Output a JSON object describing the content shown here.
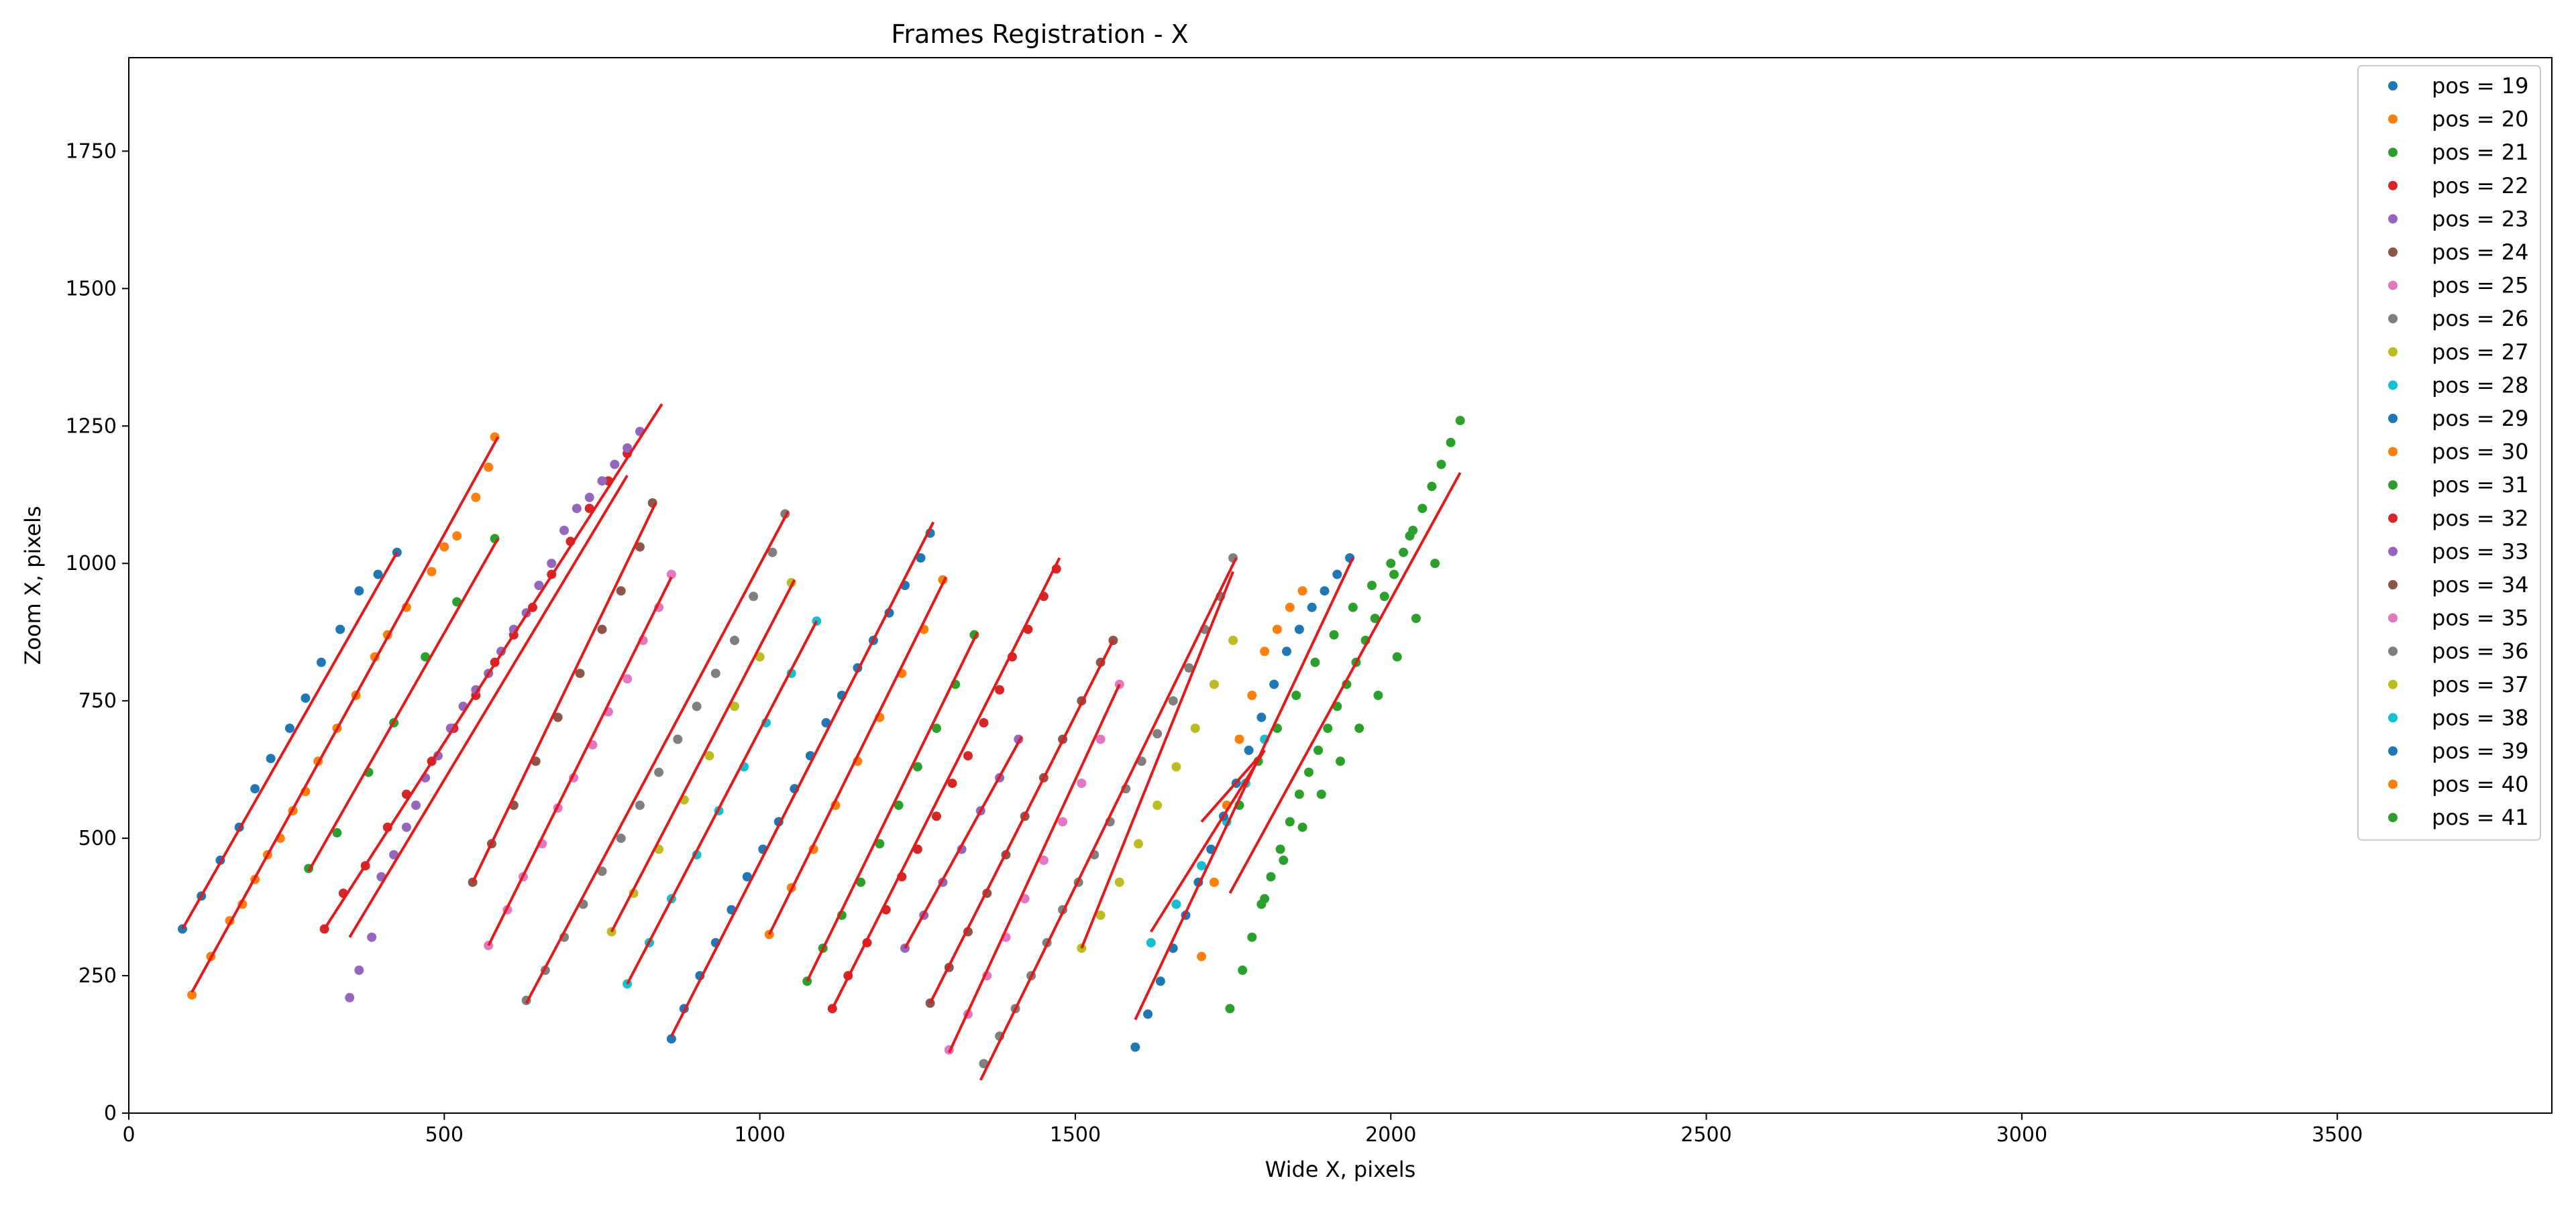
{
  "chart_data": {
    "type": "scatter",
    "title": "Frames Registration - X",
    "xlabel": "Wide X, pixels",
    "ylabel": "Zoom X, pixels",
    "xlim": [
      0,
      3840
    ],
    "ylim": [
      0,
      1920
    ],
    "xticks": [
      0,
      500,
      1000,
      1500,
      2000,
      2500,
      3000,
      3500
    ],
    "yticks": [
      0,
      250,
      500,
      750,
      1000,
      1250,
      1500,
      1750
    ],
    "grid": false,
    "legend_position": "top-right",
    "fit_line_color": "#e31a1c",
    "series": [
      {
        "name": "pos = 19",
        "color": "#1f77b4",
        "x": [
          85,
          115,
          145,
          175,
          200,
          225,
          255,
          280,
          305,
          335,
          365,
          395,
          425
        ],
        "y": [
          335,
          395,
          460,
          520,
          590,
          645,
          700,
          755,
          820,
          880,
          950,
          980,
          1020
        ]
      },
      {
        "name": "pos = 20",
        "color": "#ff7f0e",
        "x": [
          100,
          130,
          160,
          180,
          200,
          220,
          240,
          260,
          280,
          300,
          330,
          360,
          390,
          410,
          440,
          480,
          500,
          520,
          550,
          570,
          580
        ],
        "y": [
          215,
          285,
          350,
          380,
          425,
          470,
          500,
          550,
          585,
          640,
          700,
          760,
          830,
          870,
          920,
          985,
          1030,
          1050,
          1120,
          1175,
          1230
        ]
      },
      {
        "name": "pos = 21",
        "color": "#2ca02c",
        "x": [
          285,
          330,
          380,
          420,
          470,
          520,
          580
        ],
        "y": [
          445,
          510,
          620,
          710,
          830,
          930,
          1045
        ]
      },
      {
        "name": "pos = 22",
        "color": "#d62728",
        "x": [
          310,
          340,
          375,
          410,
          440,
          480,
          515,
          550,
          580,
          610,
          640,
          670,
          700,
          730,
          760,
          790
        ],
        "y": [
          335,
          400,
          450,
          520,
          580,
          640,
          700,
          760,
          820,
          870,
          920,
          980,
          1040,
          1100,
          1150,
          1200
        ]
      },
      {
        "name": "pos = 23",
        "color": "#9467bd",
        "x": [
          350,
          365,
          385,
          400,
          420,
          440,
          455,
          470,
          490,
          510,
          530,
          550,
          570,
          590,
          610,
          630,
          650,
          670,
          690,
          710,
          730,
          750,
          770,
          790,
          810
        ],
        "y": [
          210,
          260,
          320,
          430,
          470,
          520,
          560,
          610,
          650,
          700,
          740,
          770,
          800,
          840,
          880,
          910,
          960,
          1000,
          1060,
          1100,
          1120,
          1150,
          1180,
          1210,
          1240
        ]
      },
      {
        "name": "pos = 24",
        "color": "#8c564b",
        "x": [
          545,
          575,
          610,
          645,
          680,
          715,
          750,
          780,
          810,
          830
        ],
        "y": [
          420,
          490,
          560,
          640,
          720,
          800,
          880,
          950,
          1030,
          1110
        ]
      },
      {
        "name": "pos = 25",
        "color": "#e377c2",
        "x": [
          570,
          600,
          625,
          655,
          680,
          705,
          735,
          760,
          790,
          815,
          840,
          860
        ],
        "y": [
          305,
          370,
          430,
          490,
          555,
          610,
          670,
          730,
          790,
          860,
          920,
          980
        ]
      },
      {
        "name": "pos = 26",
        "color": "#7f7f7f",
        "x": [
          630,
          660,
          690,
          720,
          750,
          780,
          810,
          840,
          870,
          900,
          930,
          960,
          990,
          1020,
          1040
        ],
        "y": [
          205,
          260,
          320,
          380,
          440,
          500,
          560,
          620,
          680,
          740,
          800,
          860,
          940,
          1020,
          1090
        ]
      },
      {
        "name": "pos = 27",
        "color": "#bcbd22",
        "x": [
          765,
          800,
          840,
          880,
          920,
          960,
          1000,
          1050
        ],
        "y": [
          330,
          400,
          480,
          570,
          650,
          740,
          830,
          965
        ]
      },
      {
        "name": "pos = 28",
        "color": "#17becf",
        "x": [
          790,
          825,
          860,
          900,
          935,
          975,
          1010,
          1050,
          1090
        ],
        "y": [
          235,
          310,
          390,
          470,
          550,
          630,
          710,
          800,
          895
        ]
      },
      {
        "name": "pos = 29",
        "color": "#1f77b4",
        "x": [
          860,
          880,
          905,
          930,
          955,
          980,
          1005,
          1030,
          1055,
          1080,
          1105,
          1130,
          1155,
          1180,
          1205,
          1230,
          1255,
          1270
        ],
        "y": [
          135,
          190,
          250,
          310,
          370,
          430,
          480,
          530,
          590,
          650,
          710,
          760,
          810,
          860,
          910,
          960,
          1010,
          1055
        ]
      },
      {
        "name": "pos = 30",
        "color": "#ff7f0e",
        "x": [
          1015,
          1050,
          1085,
          1120,
          1155,
          1190,
          1225,
          1260,
          1290
        ],
        "y": [
          325,
          410,
          480,
          560,
          640,
          720,
          800,
          880,
          970
        ]
      },
      {
        "name": "pos = 31",
        "color": "#2ca02c",
        "x": [
          1075,
          1100,
          1130,
          1160,
          1190,
          1220,
          1250,
          1280,
          1310,
          1340
        ],
        "y": [
          240,
          300,
          360,
          420,
          490,
          560,
          630,
          700,
          780,
          870
        ]
      },
      {
        "name": "pos = 32",
        "color": "#d62728",
        "x": [
          1115,
          1140,
          1170,
          1200,
          1225,
          1250,
          1280,
          1305,
          1330,
          1355,
          1380,
          1400,
          1425,
          1450,
          1470
        ],
        "y": [
          190,
          250,
          310,
          370,
          430,
          480,
          540,
          600,
          650,
          710,
          770,
          830,
          880,
          940,
          990
        ]
      },
      {
        "name": "pos = 33",
        "color": "#9467bd",
        "x": [
          1230,
          1260,
          1290,
          1320,
          1350,
          1380,
          1410
        ],
        "y": [
          300,
          360,
          420,
          480,
          550,
          610,
          680
        ]
      },
      {
        "name": "pos = 34",
        "color": "#8c564b",
        "x": [
          1270,
          1300,
          1330,
          1360,
          1390,
          1420,
          1450,
          1480,
          1510,
          1540,
          1560
        ],
        "y": [
          200,
          265,
          330,
          400,
          470,
          540,
          610,
          680,
          750,
          820,
          860
        ]
      },
      {
        "name": "pos = 35",
        "color": "#e377c2",
        "x": [
          1300,
          1330,
          1360,
          1390,
          1420,
          1450,
          1480,
          1510,
          1540,
          1570
        ],
        "y": [
          115,
          180,
          250,
          320,
          390,
          460,
          530,
          600,
          680,
          780
        ]
      },
      {
        "name": "pos = 36",
        "color": "#7f7f7f",
        "x": [
          1355,
          1380,
          1405,
          1430,
          1455,
          1480,
          1505,
          1530,
          1555,
          1580,
          1605,
          1630,
          1655,
          1680,
          1705,
          1730,
          1750
        ],
        "y": [
          90,
          140,
          190,
          250,
          310,
          370,
          420,
          470,
          530,
          590,
          640,
          690,
          750,
          810,
          880,
          940,
          1010
        ]
      },
      {
        "name": "pos = 37",
        "color": "#bcbd22",
        "x": [
          1510,
          1540,
          1570,
          1600,
          1630,
          1660,
          1690,
          1720,
          1750
        ],
        "y": [
          300,
          360,
          420,
          490,
          560,
          630,
          700,
          780,
          860
        ]
      },
      {
        "name": "pos = 38",
        "color": "#17becf",
        "x": [
          1620,
          1660,
          1700,
          1740,
          1770,
          1800
        ],
        "y": [
          310,
          380,
          450,
          530,
          600,
          680
        ]
      },
      {
        "name": "pos = 39",
        "color": "#1f77b4",
        "x": [
          1595,
          1615,
          1635,
          1655,
          1675,
          1695,
          1715,
          1735,
          1755,
          1775,
          1795,
          1815,
          1835,
          1855,
          1875,
          1895,
          1915,
          1935
        ],
        "y": [
          120,
          180,
          240,
          300,
          360,
          420,
          480,
          540,
          600,
          660,
          720,
          780,
          840,
          880,
          920,
          950,
          980,
          1010
        ]
      },
      {
        "name": "pos = 40",
        "color": "#ff7f0e",
        "x": [
          1700,
          1720,
          1740,
          1760,
          1780,
          1800,
          1820,
          1840,
          1860
        ],
        "y": [
          285,
          420,
          560,
          680,
          760,
          840,
          880,
          920,
          950
        ]
      },
      {
        "name": "pos = 41",
        "color": "#2ca02c",
        "x": [
          1745,
          1765,
          1780,
          1795,
          1810,
          1825,
          1840,
          1855,
          1870,
          1885,
          1900,
          1915,
          1930,
          1945,
          1960,
          1975,
          1990,
          2005,
          2020,
          2035,
          2050,
          2065,
          2080,
          2095,
          2110,
          1760,
          1790,
          1820,
          1850,
          1880,
          1910,
          1940,
          1970,
          2000,
          2030,
          1800,
          1830,
          1860,
          1890,
          1920,
          1950,
          1980,
          2010,
          2040,
          2070
        ],
        "y": [
          190,
          260,
          320,
          380,
          430,
          480,
          530,
          580,
          620,
          660,
          700,
          740,
          780,
          820,
          860,
          900,
          940,
          980,
          1020,
          1060,
          1100,
          1140,
          1180,
          1220,
          1260,
          560,
          640,
          700,
          760,
          820,
          870,
          920,
          960,
          1000,
          1050,
          390,
          460,
          520,
          580,
          640,
          700,
          760,
          830,
          900,
          1000
        ]
      }
    ],
    "fit_lines": [
      {
        "x": [
          85,
          425
        ],
        "y": [
          335,
          1020
        ]
      },
      {
        "x": [
          100,
          585
        ],
        "y": [
          220,
          1230
        ]
      },
      {
        "x": [
          285,
          585
        ],
        "y": [
          440,
          1045
        ]
      },
      {
        "x": [
          310,
          845
        ],
        "y": [
          335,
          1290
        ]
      },
      {
        "x": [
          350,
          790
        ],
        "y": [
          320,
          1160
        ]
      },
      {
        "x": [
          545,
          835
        ],
        "y": [
          420,
          1110
        ]
      },
      {
        "x": [
          570,
          860
        ],
        "y": [
          305,
          975
        ]
      },
      {
        "x": [
          630,
          1045
        ],
        "y": [
          200,
          1095
        ]
      },
      {
        "x": [
          765,
          1055
        ],
        "y": [
          330,
          970
        ]
      },
      {
        "x": [
          790,
          1090
        ],
        "y": [
          235,
          895
        ]
      },
      {
        "x": [
          860,
          1275
        ],
        "y": [
          140,
          1075
        ]
      },
      {
        "x": [
          1015,
          1295
        ],
        "y": [
          325,
          975
        ]
      },
      {
        "x": [
          1075,
          1345
        ],
        "y": [
          240,
          875
        ]
      },
      {
        "x": [
          1115,
          1475
        ],
        "y": [
          190,
          1010
        ]
      },
      {
        "x": [
          1230,
          1415
        ],
        "y": [
          300,
          685
        ]
      },
      {
        "x": [
          1270,
          1560
        ],
        "y": [
          200,
          860
        ]
      },
      {
        "x": [
          1300,
          1570
        ],
        "y": [
          110,
          780
        ]
      },
      {
        "x": [
          1350,
          1755
        ],
        "y": [
          60,
          1010
        ]
      },
      {
        "x": [
          1510,
          1750
        ],
        "y": [
          300,
          985
        ]
      },
      {
        "x": [
          1595,
          1940
        ],
        "y": [
          170,
          1010
        ]
      },
      {
        "x": [
          1620,
          1800
        ],
        "y": [
          330,
          660
        ]
      },
      {
        "x": [
          1700,
          1800
        ],
        "y": [
          530,
          660
        ]
      },
      {
        "x": [
          1745,
          2110
        ],
        "y": [
          400,
          1165
        ]
      }
    ]
  }
}
